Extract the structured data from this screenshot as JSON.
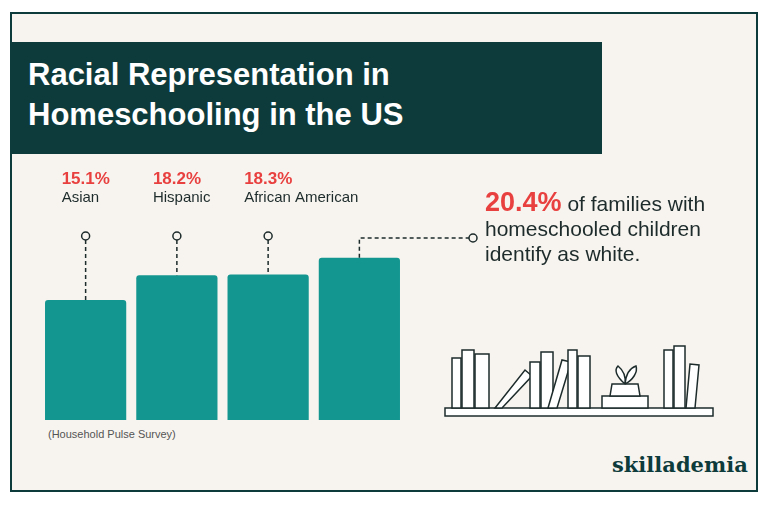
{
  "chart_data": {
    "type": "bar",
    "title": "Racial Representation in Homeschooling in the US",
    "categories": [
      "Asian",
      "Hispanic",
      "African American",
      null
    ],
    "values": [
      15.1,
      18.2,
      18.3,
      20.4
    ],
    "value_labels": [
      "15.1%",
      "18.2%",
      "18.3%",
      "20.4%"
    ],
    "color": "#149690",
    "ylim": [
      0,
      22
    ],
    "grid": false,
    "tick_labels": false,
    "data_labels": true,
    "annotation": "of families with homeschooled children identify as white.",
    "source": "(Household Pulse Survey)",
    "brand": "skillademia"
  }
}
